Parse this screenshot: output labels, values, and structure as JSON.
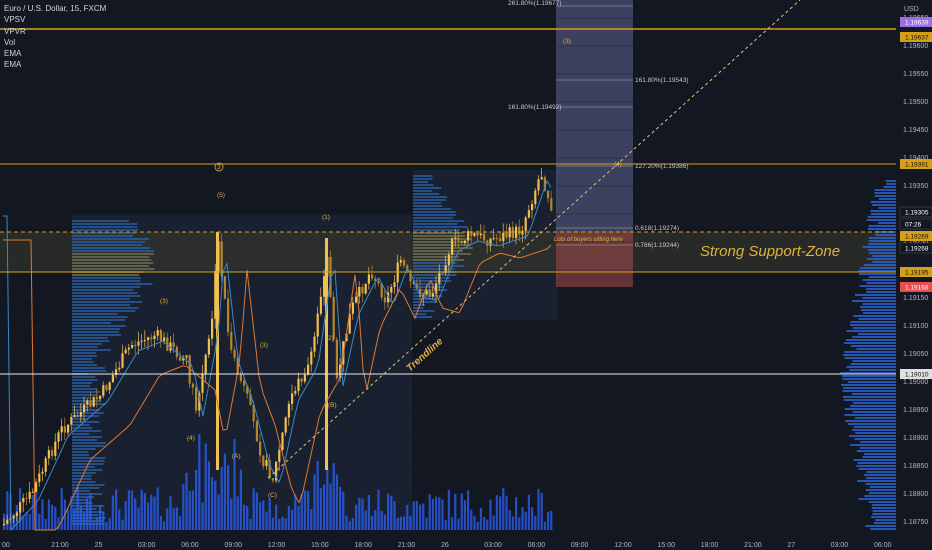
{
  "symbol": {
    "title": "Euro / U.S. Dollar, 15, FXCM",
    "indicators": [
      "VPSV",
      "VPVR",
      "Vol",
      "EMA",
      "EMA"
    ]
  },
  "price_axis": {
    "currency": "USD",
    "ticks": [
      "1.19650",
      "1.19600",
      "1.19550",
      "1.19500",
      "1.19450",
      "1.19400",
      "1.19350",
      "1.19300",
      "1.19250",
      "1.19200",
      "1.19150",
      "1.19100",
      "1.19050",
      "1.19000",
      "1.18950",
      "1.18900",
      "1.18850",
      "1.18800",
      "1.18750"
    ],
    "badges": [
      {
        "label": "1.19639",
        "color": "#9c6ee6"
      },
      {
        "label": "1.19637",
        "color": "#d4a017"
      },
      {
        "label": "1.19391",
        "color": "#d4a017"
      },
      {
        "label": "1.19305",
        "color": "#131722"
      },
      {
        "label": "07:26",
        "color": "#131722"
      },
      {
        "label": "1.19269",
        "color": "#d4a017"
      },
      {
        "label": "1.19268",
        "color": "#131722"
      },
      {
        "label": "1.19195",
        "color": "#d4a017"
      },
      {
        "label": "1.19168",
        "color": "#e84e4e"
      },
      {
        "label": "1.19010",
        "color": "#e0e0e0"
      }
    ]
  },
  "time_axis": [
    "00",
    "21:00",
    "25",
    "03:00",
    "06:00",
    "09:00",
    "12:00",
    "15:00",
    "18:00",
    "21:00",
    "26",
    "03:00",
    "06:00",
    "09:00",
    "12:00",
    "15:00",
    "18:00",
    "21:00",
    "27",
    "03:00",
    "06:00"
  ],
  "annotations": {
    "support_zone": "Strong Support-Zone",
    "buyers_note": "Lots of buyers sitting here",
    "trendline": "Trendline",
    "waves": [
      "(3)",
      "(5)",
      "(4)",
      "(3)",
      "(A)",
      "(B)",
      "(C)",
      "(1)",
      "(2)",
      "3",
      "(4)",
      "(3)"
    ]
  },
  "fib_labels": {
    "f1": "261.80%(1.19677)",
    "f2": "161.80%(1.19543)",
    "f3": "161.80%(1.19492)",
    "f4": "127.20%(1.19386)",
    "f5": "0.618(1.19274)",
    "f6": "0.786(1.19244)"
  },
  "colors": {
    "background": "#131722",
    "bull_candle": "#f0c050",
    "bear_candle": "#b8862a",
    "ema_fast": "#3a86c8",
    "ema_slow": "#e07830",
    "support_line": "#d4a017",
    "volume": "#2962ff"
  }
}
